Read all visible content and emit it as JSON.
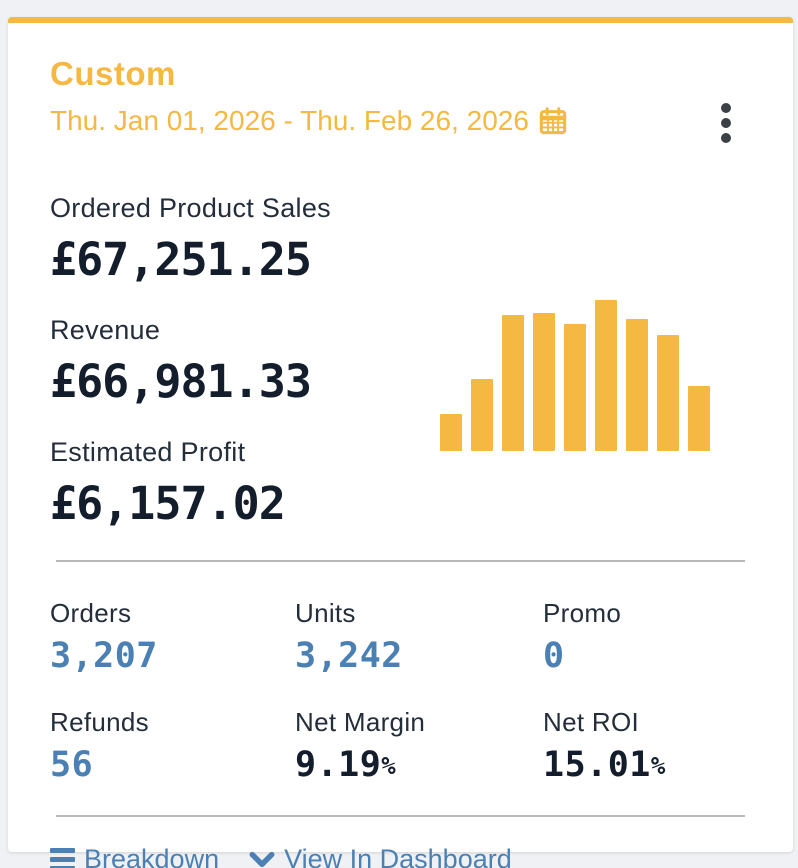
{
  "theme": {
    "accent_orange": "#F5B842",
    "link_blue": "#4A80B3",
    "text_dark": "#131D2B",
    "label_dark": "#242E3A",
    "divider_gray": "#B9B9B9",
    "page_bg": "#F0F1F4",
    "kebab_dark": "#3A4046"
  },
  "header": {
    "title": "Custom",
    "date_range": "Thu. Jan 01, 2026 - Thu. Feb 26, 2026",
    "calendar_icon": "calendar-icon",
    "menu_icon": "kebab-menu-icon"
  },
  "metrics": [
    {
      "label": "Ordered Product Sales",
      "value": "£67,251.25"
    },
    {
      "label": "Revenue",
      "value": "£66,981.33"
    },
    {
      "label": "Estimated Profit",
      "value": "£6,157.02"
    }
  ],
  "chart_data": {
    "type": "bar",
    "categories": [
      "1",
      "2",
      "3",
      "4",
      "5",
      "6",
      "7",
      "8",
      "9"
    ],
    "values": [
      37,
      72,
      136,
      138,
      127,
      151,
      132,
      116,
      65
    ],
    "unit": "relative-height-px",
    "color": "#F5B842",
    "title": "",
    "xlabel": "",
    "ylabel": "",
    "axes_visible": false,
    "grid": false,
    "legend": false
  },
  "stats": [
    {
      "label": "Orders",
      "value": "3,207",
      "style": "blue"
    },
    {
      "label": "Units",
      "value": "3,242",
      "style": "blue"
    },
    {
      "label": "Promo",
      "value": "0",
      "style": "blue"
    },
    {
      "label": "Refunds",
      "value": "56",
      "style": "blue"
    },
    {
      "label": "Net Margin",
      "value": "9.19",
      "suffix": "%",
      "style": "dark"
    },
    {
      "label": "Net ROI",
      "value": "15.01",
      "suffix": "%",
      "style": "dark"
    }
  ],
  "footer": {
    "breakdown_label": "Breakdown",
    "view_in_dashboard_label": "View In Dashboard"
  }
}
